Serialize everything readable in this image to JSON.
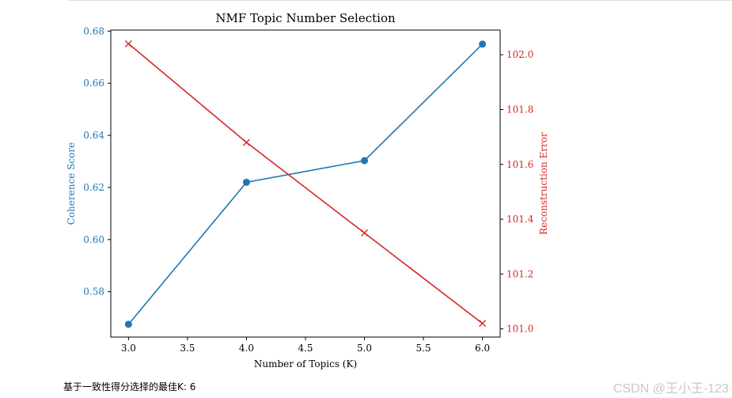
{
  "chart_data": {
    "type": "line",
    "title": "NMF Topic Number Selection",
    "xlabel": "Number of Topics (K)",
    "ylabel_left": "Coherence Score",
    "ylabel_right": "Reconstruction Error",
    "x": [
      3,
      4,
      5,
      6
    ],
    "xlim": [
      2.85,
      6.15
    ],
    "xticks": [
      3.0,
      3.5,
      4.0,
      4.5,
      5.0,
      5.5,
      6.0
    ],
    "xtick_labels": [
      "3.0",
      "3.5",
      "4.0",
      "4.5",
      "5.0",
      "5.5",
      "6.0"
    ],
    "left_axis": {
      "ylim": [
        0.5626,
        0.6804
      ],
      "ticks": [
        0.58,
        0.6,
        0.62,
        0.64,
        0.66,
        0.68
      ],
      "tick_labels": [
        "0.58",
        "0.60",
        "0.62",
        "0.64",
        "0.66",
        "0.68"
      ],
      "color": "#1f77b4"
    },
    "right_axis": {
      "ylim": [
        100.97,
        102.09
      ],
      "ticks": [
        101.0,
        101.2,
        101.4,
        101.6,
        101.8,
        102.0
      ],
      "tick_labels": [
        "101.0",
        "101.2",
        "101.4",
        "101.6",
        "101.8",
        "102.0"
      ],
      "color": "#d62728"
    },
    "series": [
      {
        "axis": "left",
        "marker": "circle",
        "color": "#1f77b4",
        "values": [
          0.5675,
          0.622,
          0.6303,
          0.675
        ]
      },
      {
        "axis": "right",
        "marker": "x",
        "color": "#d62728",
        "values": [
          102.04,
          101.68,
          101.35,
          101.02
        ]
      }
    ],
    "grid": false
  },
  "footer": {
    "text": "基于一致性得分选择的最佳K: 6"
  },
  "watermark": "CSDN @王小王-123"
}
